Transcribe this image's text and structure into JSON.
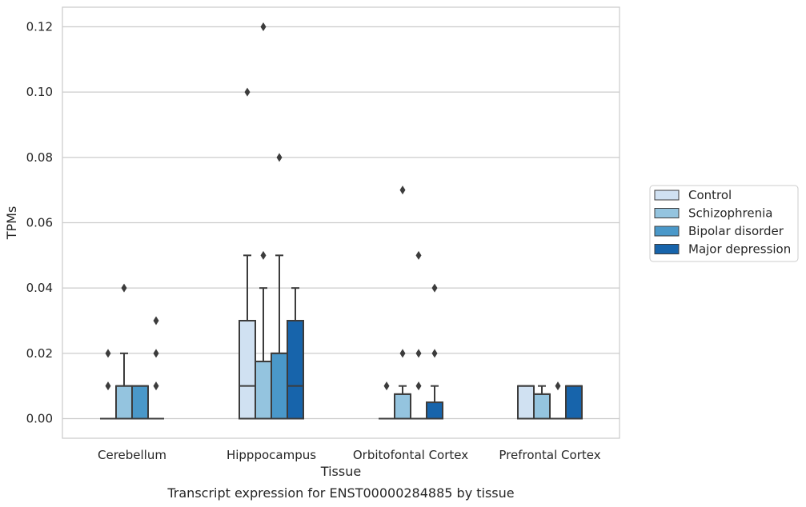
{
  "chart_data": {
    "type": "box",
    "title": "Transcript expression for ENST00000284885 by tissue",
    "xlabel": "Tissue",
    "ylabel": "TPMs",
    "ylim": [
      -0.006,
      0.126
    ],
    "yticks": [
      "0.00",
      "0.02",
      "0.04",
      "0.06",
      "0.08",
      "0.10",
      "0.12"
    ],
    "grid": true,
    "legend_position": "right",
    "categories": [
      "Cerebellum",
      "Hipppocampus",
      "Orbitofontal Cortex",
      "Prefrontal Cortex"
    ],
    "series": [
      {
        "name": "Control",
        "color": "#d0e1f2",
        "boxes": [
          {
            "q1": 0,
            "median": 0,
            "q3": 0,
            "whisker_low": 0,
            "whisker_high": 0,
            "outliers": [
              0.01,
              0.02
            ]
          },
          {
            "q1": 0,
            "median": 0.01,
            "q3": 0.03,
            "whisker_low": 0,
            "whisker_high": 0.05,
            "outliers": [
              0.1
            ]
          },
          {
            "q1": 0,
            "median": 0,
            "q3": 0,
            "whisker_low": 0,
            "whisker_high": 0,
            "outliers": [
              0.01
            ]
          },
          {
            "q1": 0,
            "median": 0.01,
            "q3": 0.01,
            "whisker_low": 0,
            "whisker_high": 0.01,
            "outliers": []
          }
        ]
      },
      {
        "name": "Schizophrenia",
        "color": "#94c4df",
        "boxes": [
          {
            "q1": 0,
            "median": 0.01,
            "q3": 0.01,
            "whisker_low": 0,
            "whisker_high": 0.02,
            "outliers": [
              0.04
            ]
          },
          {
            "q1": 0,
            "median": 0.0175,
            "q3": 0.0175,
            "whisker_low": 0,
            "whisker_high": 0.04,
            "outliers": [
              0.12,
              0.05
            ]
          },
          {
            "q1": 0,
            "median": 0.0075,
            "q3": 0.0075,
            "whisker_low": 0,
            "whisker_high": 0.01,
            "outliers": [
              0.07,
              0.02
            ]
          },
          {
            "q1": 0,
            "median": 0.0075,
            "q3": 0.0075,
            "whisker_low": 0,
            "whisker_high": 0.01,
            "outliers": []
          }
        ]
      },
      {
        "name": "Bipolar disorder",
        "color": "#4a98c9",
        "boxes": [
          {
            "q1": 0,
            "median": 0.01,
            "q3": 0.01,
            "whisker_low": 0,
            "whisker_high": 0.01,
            "outliers": []
          },
          {
            "q1": 0,
            "median": 0.02,
            "q3": 0.02,
            "whisker_low": 0,
            "whisker_high": 0.05,
            "outliers": [
              0.08
            ]
          },
          {
            "q1": 0,
            "median": 0,
            "q3": 0,
            "whisker_low": 0,
            "whisker_high": 0,
            "outliers": [
              0.05,
              0.02,
              0.01
            ]
          },
          {
            "q1": 0,
            "median": 0,
            "q3": 0,
            "whisker_low": 0,
            "whisker_high": 0,
            "outliers": [
              0.01
            ]
          }
        ]
      },
      {
        "name": "Major depression",
        "color": "#1764ab",
        "boxes": [
          {
            "q1": 0,
            "median": 0,
            "q3": 0,
            "whisker_low": 0,
            "whisker_high": 0,
            "outliers": [
              0.03,
              0.02,
              0.01
            ]
          },
          {
            "q1": 0,
            "median": 0.01,
            "q3": 0.03,
            "whisker_low": 0,
            "whisker_high": 0.04,
            "outliers": []
          },
          {
            "q1": 0,
            "median": 0,
            "q3": 0.005,
            "whisker_low": 0,
            "whisker_high": 0.01,
            "outliers": [
              0.04,
              0.02
            ]
          },
          {
            "q1": 0,
            "median": 0.01,
            "q3": 0.01,
            "whisker_low": 0,
            "whisker_high": 0.01,
            "outliers": []
          }
        ]
      }
    ]
  }
}
